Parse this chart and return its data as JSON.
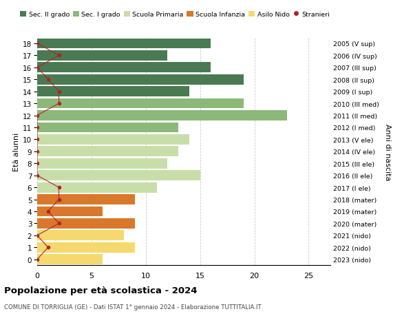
{
  "ages": [
    18,
    17,
    16,
    15,
    14,
    13,
    12,
    11,
    10,
    9,
    8,
    7,
    6,
    5,
    4,
    3,
    2,
    1,
    0
  ],
  "anni_nascita": [
    "2005 (V sup)",
    "2006 (IV sup)",
    "2007 (III sup)",
    "2008 (II sup)",
    "2009 (I sup)",
    "2010 (III med)",
    "2011 (II med)",
    "2012 (I med)",
    "2013 (V ele)",
    "2014 (IV ele)",
    "2015 (III ele)",
    "2016 (II ele)",
    "2017 (I ele)",
    "2018 (mater)",
    "2019 (mater)",
    "2020 (mater)",
    "2021 (nido)",
    "2022 (nido)",
    "2023 (nido)"
  ],
  "bar_values": [
    16,
    12,
    16,
    19,
    14,
    19,
    23,
    13,
    14,
    13,
    12,
    15,
    11,
    9,
    6,
    9,
    8,
    9,
    6
  ],
  "bar_colors": [
    "#4a7a52",
    "#4a7a52",
    "#4a7a52",
    "#4a7a52",
    "#4a7a52",
    "#8cb87a",
    "#8cb87a",
    "#8cb87a",
    "#c8dea8",
    "#c8dea8",
    "#c8dea8",
    "#c8dea8",
    "#c8dea8",
    "#d9782a",
    "#d9782a",
    "#d9782a",
    "#f5d96e",
    "#f5d96e",
    "#f5d96e"
  ],
  "stranieri_x": [
    0,
    2,
    0,
    1,
    2,
    2,
    0,
    0,
    0,
    0,
    0,
    0,
    2,
    2,
    1,
    2,
    0,
    1,
    0
  ],
  "legend_labels": [
    "Sec. II grado",
    "Sec. I grado",
    "Scuola Primaria",
    "Scuola Infanzia",
    "Asilo Nido",
    "Stranieri"
  ],
  "legend_colors": [
    "#4a7a52",
    "#8cb87a",
    "#c8dea8",
    "#d9782a",
    "#f5d96e",
    "#b22222"
  ],
  "stranieri_color": "#b22222",
  "title": "Popolazione per età scolastica - 2024",
  "subtitle": "COMUNE DI TORRIGLIA (GE) - Dati ISTAT 1° gennaio 2024 - Elaborazione TUTTITALIA.IT",
  "ylabel": "Età alunni",
  "ylabel2": "Anni di nascita",
  "xlabel_values": [
    0,
    5,
    10,
    15,
    20,
    25
  ],
  "xlim": [
    0,
    27
  ],
  "ylim": [
    -0.5,
    18.5
  ],
  "bg_color": "#ffffff",
  "grid_color": "#cccccc"
}
